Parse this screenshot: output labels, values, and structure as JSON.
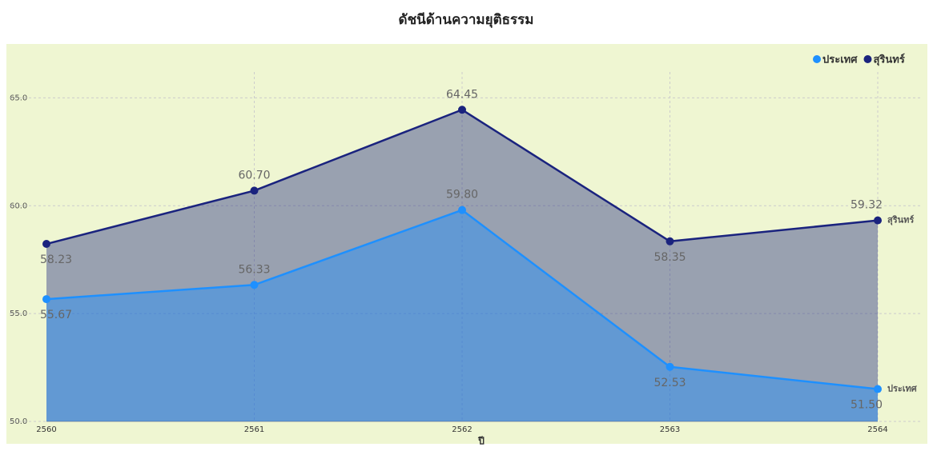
{
  "chart_data": {
    "type": "area",
    "title": "ดัชนีด้านความยุติธรรม",
    "x_label": "ปี",
    "categories": [
      "2560",
      "2561",
      "2562",
      "2563",
      "2564"
    ],
    "series": [
      {
        "name": "ประเทศ",
        "color": "#1e90ff",
        "values": [
          55.67,
          56.33,
          59.8,
          52.53,
          51.5
        ],
        "value_labels": [
          "55.67",
          "56.33",
          "59.80",
          "52.53",
          "51.50"
        ]
      },
      {
        "name": "สุรินทร์",
        "color": "#1a237e",
        "values": [
          58.23,
          60.7,
          64.45,
          58.35,
          59.32
        ],
        "value_labels": [
          "58.23",
          "60.70",
          "64.45",
          "58.35",
          "59.32"
        ]
      }
    ],
    "ylim": [
      50,
      67.5
    ],
    "yticks": [
      {
        "value": 50,
        "label": "50.0"
      },
      {
        "value": 55,
        "label": "55.0"
      },
      {
        "value": 60,
        "label": "60.0"
      },
      {
        "value": 65,
        "label": "65.0"
      }
    ],
    "grid": true,
    "legend": "top-right"
  }
}
